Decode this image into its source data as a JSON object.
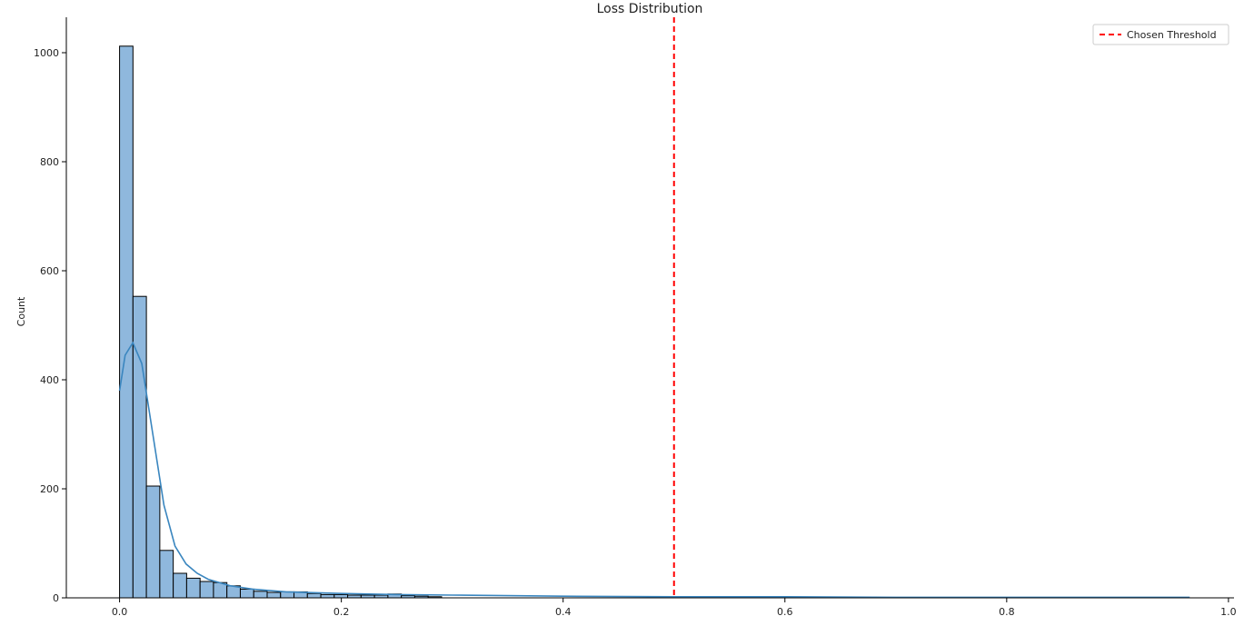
{
  "chart_data": {
    "type": "bar",
    "title": "Loss Distribution",
    "xlabel": "",
    "ylabel": "Count",
    "xlim": [
      -0.048,
      1.005
    ],
    "ylim": [
      0,
      1065
    ],
    "x_ticks": [
      0.0,
      0.2,
      0.4,
      0.6,
      0.8,
      1.0
    ],
    "x_tick_labels": [
      "0.0",
      "0.2",
      "0.4",
      "0.6",
      "0.8",
      "1.0"
    ],
    "y_ticks": [
      0,
      200,
      400,
      600,
      800,
      1000
    ],
    "y_tick_labels": [
      "0",
      "200",
      "400",
      "600",
      "800",
      "1000"
    ],
    "grid": false,
    "bin_width": 0.0121,
    "bins": {
      "x_start": [
        0.0,
        0.0121,
        0.0242,
        0.0363,
        0.0484,
        0.0605,
        0.0726,
        0.0847,
        0.0968,
        0.1089,
        0.121,
        0.1331,
        0.1452,
        0.1573,
        0.1694,
        0.1815,
        0.1936,
        0.2057,
        0.2178,
        0.2299,
        0.242,
        0.2541,
        0.2662,
        0.2783
      ],
      "counts": [
        1012,
        553,
        205,
        87,
        45,
        36,
        30,
        28,
        22,
        16,
        12,
        10,
        11,
        11,
        8,
        6,
        6,
        5,
        5,
        5,
        7,
        4,
        3,
        2
      ]
    },
    "series": [
      {
        "name": "",
        "type": "kde",
        "color": "#3a86bf",
        "x": [
          0.0,
          0.005,
          0.012,
          0.02,
          0.03,
          0.04,
          0.05,
          0.06,
          0.07,
          0.08,
          0.1,
          0.12,
          0.15,
          0.2,
          0.25,
          0.3,
          0.4,
          0.5,
          0.6,
          0.7,
          0.8,
          0.9,
          0.965
        ],
        "y": [
          380,
          445,
          468,
          430,
          300,
          170,
          95,
          62,
          45,
          34,
          22,
          16,
          11,
          8,
          6,
          5,
          3,
          2,
          2,
          1,
          1,
          1,
          1
        ]
      }
    ],
    "threshold": {
      "name": "Chosen Threshold",
      "x": 0.5,
      "color": "#ff0000"
    },
    "bar_fill": "#8fb8dd",
    "bar_edge": "#000000",
    "legend": {
      "placement": "top-right",
      "entries": [
        "Chosen Threshold"
      ]
    }
  }
}
